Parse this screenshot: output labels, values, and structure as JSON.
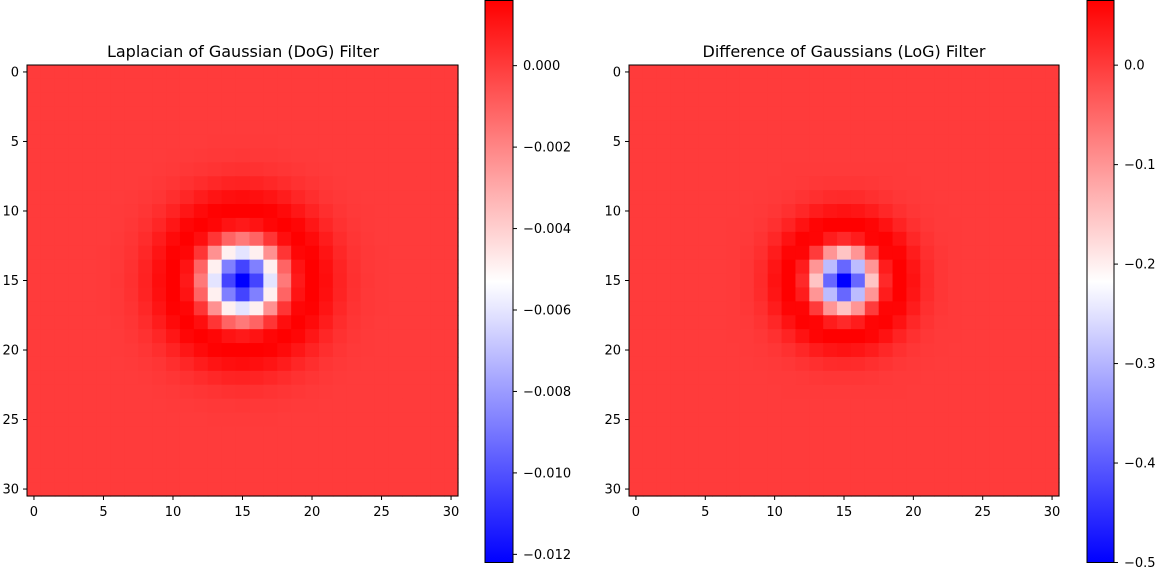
{
  "chart_data": [
    {
      "type": "heatmap",
      "title": "Laplacian of Gaussian (DoG) Filter",
      "xlabel": "",
      "ylabel": "",
      "size": 31,
      "center": 15,
      "sigma": 2.5,
      "xlim": [
        -0.5,
        30.5
      ],
      "ylim": [
        30.5,
        -0.5
      ],
      "xticks": [
        0,
        5,
        10,
        15,
        20,
        25,
        30
      ],
      "yticks": [
        0,
        5,
        10,
        15,
        20,
        25,
        30
      ],
      "colormap": "bwr",
      "vmin": -0.0122,
      "vmax": 0.0016,
      "min_value": -0.0122,
      "ring_peak": 0.0016,
      "colorbar_ticks": [
        0.0,
        -0.002,
        -0.004,
        -0.006,
        -0.008,
        -0.01,
        -0.012
      ],
      "colorbar_labels": [
        "0.000",
        "−0.002",
        "−0.004",
        "−0.006",
        "−0.008",
        "−0.010",
        "−0.012"
      ],
      "grid": false
    },
    {
      "type": "heatmap",
      "title": "Difference of Gaussians (LoG) Filter",
      "xlabel": "",
      "ylabel": "",
      "size": 31,
      "center": 15,
      "sigma": 2.0,
      "xlim": [
        -0.5,
        30.5
      ],
      "ylim": [
        30.5,
        -0.5
      ],
      "xticks": [
        0,
        5,
        10,
        15,
        20,
        25,
        30
      ],
      "yticks": [
        0,
        5,
        10,
        15,
        20,
        25,
        30
      ],
      "colormap": "bwr",
      "vmin": -0.5,
      "vmax": 0.065,
      "min_value": -0.5,
      "ring_peak": 0.065,
      "colorbar_ticks": [
        0.0,
        -0.1,
        -0.2,
        -0.3,
        -0.4,
        -0.5
      ],
      "colorbar_labels": [
        "0.0",
        "−0.1",
        "−0.2",
        "−0.3",
        "−0.4",
        "−0.5"
      ],
      "grid": false
    }
  ]
}
